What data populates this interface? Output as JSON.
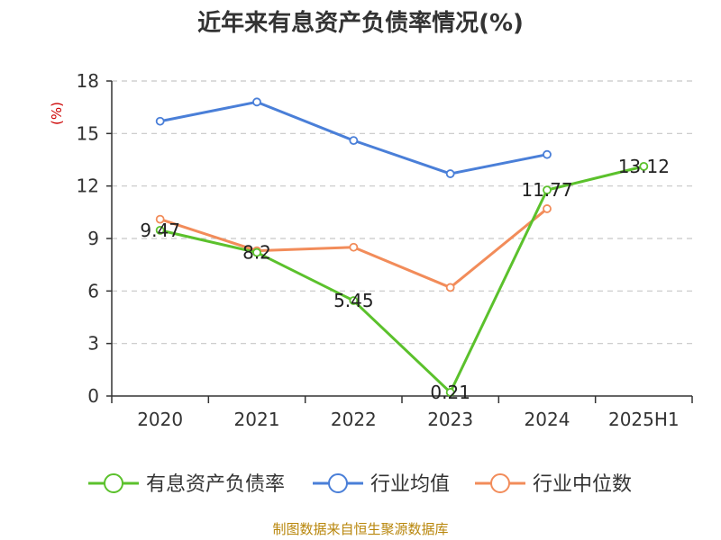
{
  "chart_data": {
    "type": "line",
    "title": "近年来有息资产负债率情况(%)",
    "ylabel": "(%)",
    "xlabel": "",
    "categories": [
      "2020",
      "2021",
      "2022",
      "2023",
      "2024",
      "2025H1"
    ],
    "ylim": [
      0,
      18
    ],
    "yticks": [
      0,
      3,
      6,
      9,
      12,
      15,
      18
    ],
    "grid": "horizontal-dashed",
    "legend_placement": "bottom",
    "series": [
      {
        "name": "有息资产负债率",
        "color": "#5bc12c",
        "values": [
          9.47,
          8.2,
          5.45,
          0.21,
          11.77,
          13.12
        ],
        "labels": [
          "9.47",
          "8.2",
          "5.45",
          "0.21",
          "11.77",
          "13.12"
        ]
      },
      {
        "name": "行业均值",
        "color": "#4a7fd8",
        "values": [
          15.7,
          16.8,
          14.6,
          12.7,
          13.8,
          null
        ]
      },
      {
        "name": "行业中位数",
        "color": "#f28c5a",
        "values": [
          10.1,
          8.3,
          8.5,
          6.2,
          10.7,
          null
        ]
      }
    ]
  },
  "source_text": "制图数据来自恒生聚源数据库"
}
